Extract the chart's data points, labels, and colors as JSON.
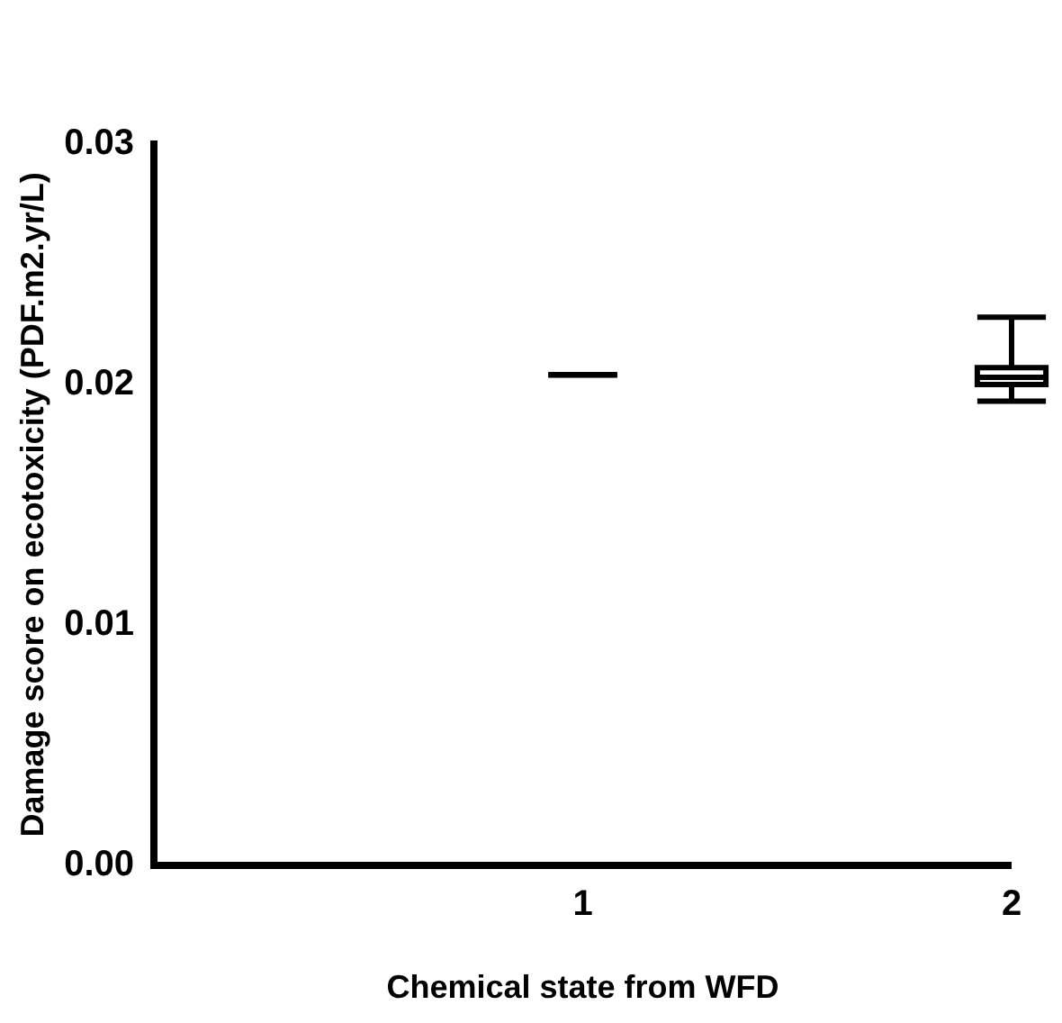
{
  "chart_data": {
    "type": "box",
    "xlabel": "Chemical state from WFD",
    "ylabel": "Damage score on ecotoxicity (PDF.m2.yr/L)",
    "categories": [
      null,
      "1",
      "2"
    ],
    "boxes": [
      null,
      {
        "low": 0.0204,
        "q1": 0.0204,
        "median": 0.0204,
        "q3": 0.0204,
        "high": 0.0204
      },
      {
        "low": 0.0193,
        "q1": 0.02,
        "median": 0.0203,
        "q3": 0.0207,
        "high": 0.0228
      }
    ],
    "ylim": [
      0,
      0.03
    ],
    "yticks": [
      {
        "value": 0,
        "label": "0.00"
      },
      {
        "value": 0.01,
        "label": "0.01"
      },
      {
        "value": 0.02,
        "label": "0.02"
      },
      {
        "value": 0.03,
        "label": "0.03"
      }
    ],
    "grid": false,
    "legend": false,
    "color": "#000000"
  }
}
